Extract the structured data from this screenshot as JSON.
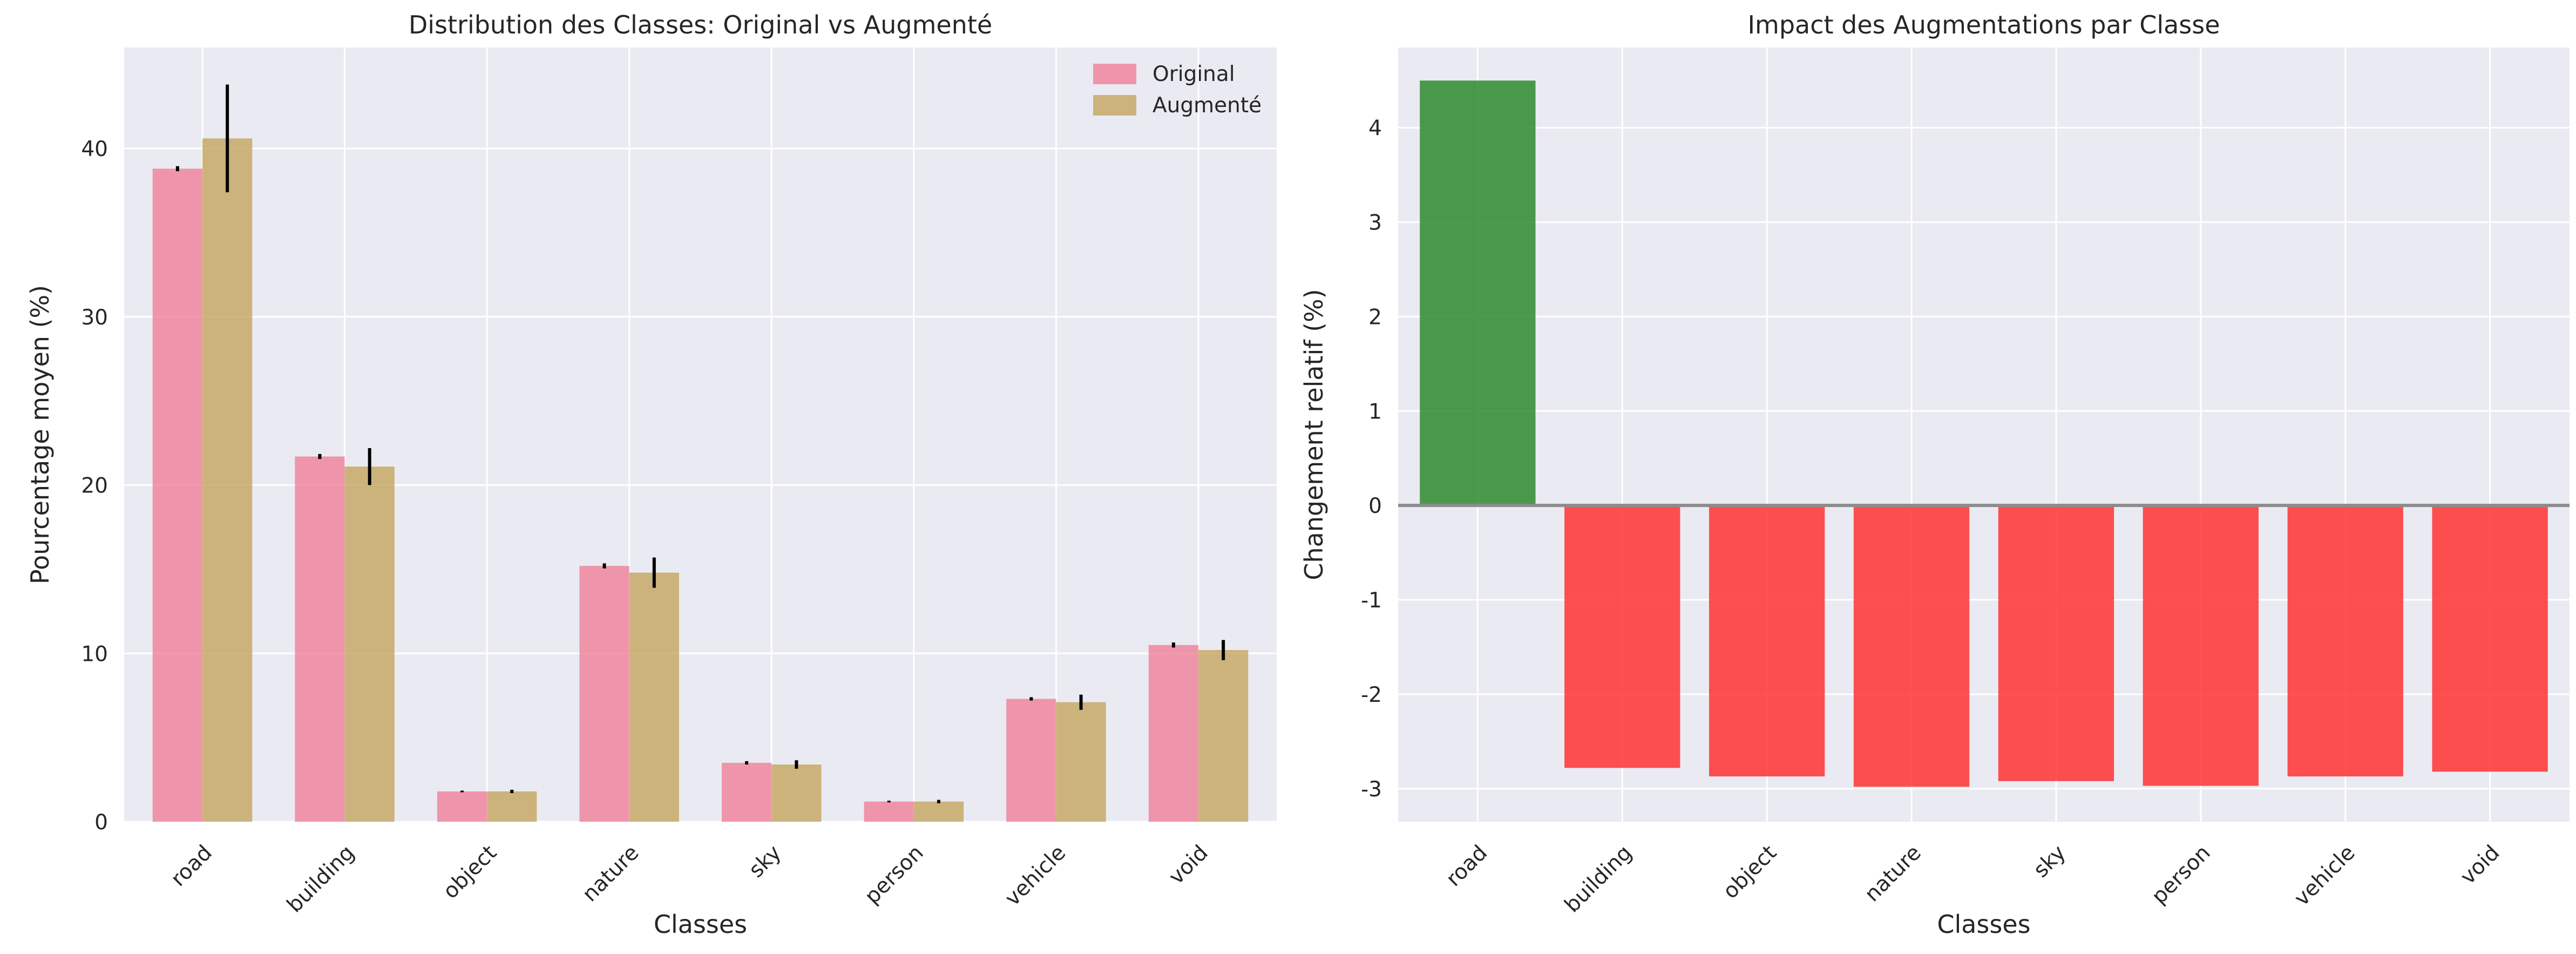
{
  "chart_data": [
    {
      "type": "bar",
      "title": "Distribution des Classes: Original vs Augmenté",
      "xlabel": "Classes",
      "ylabel": "Pourcentage moyen (%)",
      "categories": [
        "road",
        "building",
        "object",
        "nature",
        "sky",
        "person",
        "vehicle",
        "void"
      ],
      "series": [
        {
          "name": "Original",
          "color": "#f07f99",
          "values": [
            38.8,
            21.7,
            1.8,
            15.2,
            3.5,
            1.2,
            7.3,
            10.5
          ],
          "error": [
            0.15,
            0.15,
            0.05,
            0.15,
            0.1,
            0.05,
            0.1,
            0.15
          ]
        },
        {
          "name": "Augmenté",
          "color": "#c4a55d",
          "values": [
            40.6,
            21.1,
            1.8,
            14.8,
            3.4,
            1.2,
            7.1,
            10.2
          ],
          "error": [
            3.2,
            1.1,
            0.1,
            0.9,
            0.25,
            0.1,
            0.45,
            0.6
          ]
        }
      ],
      "ylim": [
        0,
        46
      ],
      "yticks": [
        0,
        10,
        20,
        30,
        40
      ],
      "legend": "top-right",
      "grid": true
    },
    {
      "type": "bar",
      "title": "Impact des Augmentations par Classe",
      "xlabel": "Classes",
      "ylabel": "Changement relatif (%)",
      "categories": [
        "road",
        "building",
        "object",
        "nature",
        "sky",
        "person",
        "vehicle",
        "void"
      ],
      "values": [
        4.5,
        -2.78,
        -2.87,
        -2.98,
        -2.92,
        -2.97,
        -2.87,
        -2.82
      ],
      "positive_color": "#2e8b2e",
      "negative_color": "#ff3333",
      "ylim": [
        -3.35,
        4.85
      ],
      "yticks": [
        -3,
        -2,
        -1,
        0,
        1,
        2,
        3,
        4
      ],
      "grid": true
    }
  ]
}
